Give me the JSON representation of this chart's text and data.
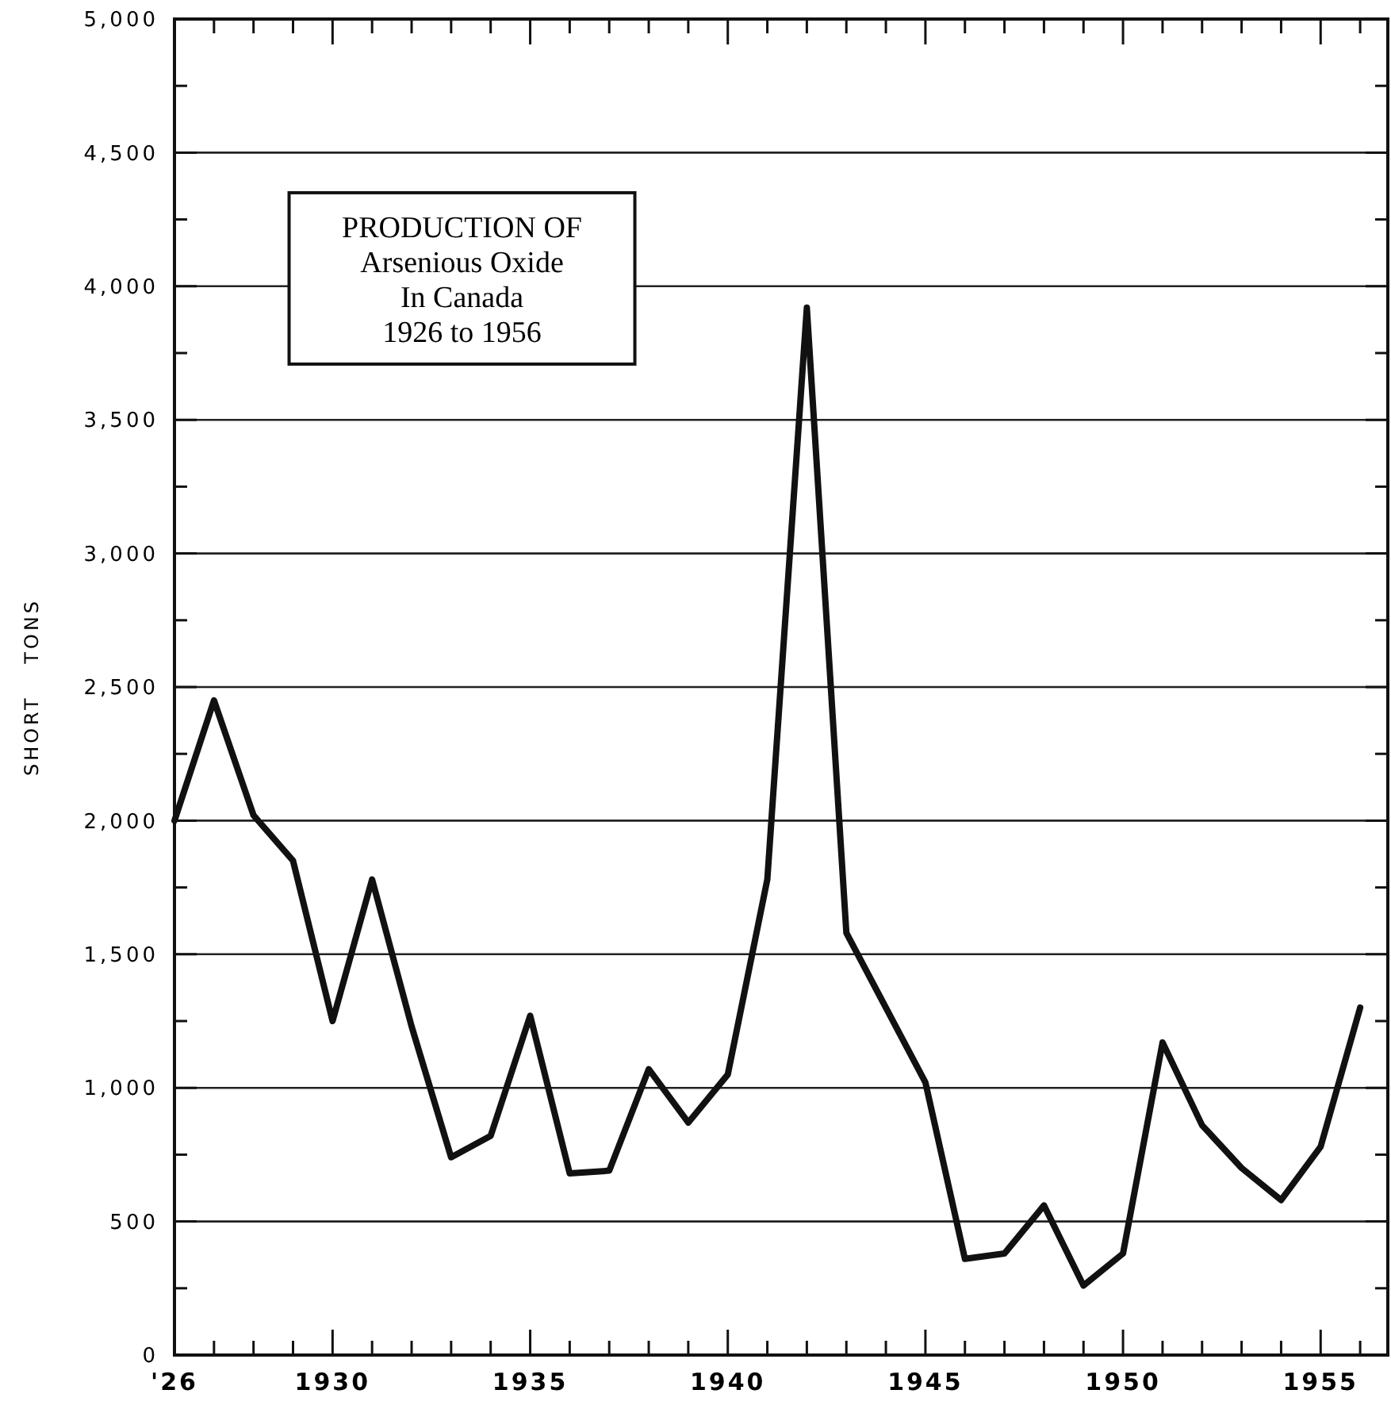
{
  "chart_data": {
    "type": "line",
    "title": "PRODUCTION OF\nArsenious Oxide\nIn Canada\n1926 to 1956",
    "ylabel": "SHORT TONS",
    "x": [
      1926,
      1927,
      1928,
      1929,
      1930,
      1931,
      1932,
      1933,
      1934,
      1935,
      1936,
      1937,
      1938,
      1939,
      1940,
      1941,
      1942,
      1943,
      1944,
      1945,
      1946,
      1947,
      1948,
      1949,
      1950,
      1951,
      1952,
      1953,
      1954,
      1955,
      1956
    ],
    "series": [
      {
        "color": "#111111",
        "values": [
          2000,
          2450,
          2020,
          1850,
          1250,
          1780,
          1230,
          740,
          820,
          1270,
          680,
          690,
          1070,
          870,
          1050,
          1780,
          3920,
          1580,
          1300,
          1020,
          360,
          380,
          560,
          260,
          380,
          1170,
          860,
          700,
          580,
          780,
          1300
        ]
      }
    ],
    "xlim": [
      1926,
      1956.7
    ],
    "xticks": [
      {
        "value": 1926,
        "label": "'26"
      },
      {
        "value": 1927,
        "label": null
      },
      {
        "value": 1928,
        "label": null
      },
      {
        "value": 1929,
        "label": null
      },
      1930,
      {
        "value": 1931,
        "label": null
      },
      {
        "value": 1932,
        "label": null
      },
      {
        "value": 1933,
        "label": null
      },
      {
        "value": 1934,
        "label": null
      },
      1935,
      {
        "value": 1936,
        "label": null
      },
      {
        "value": 1937,
        "label": null
      },
      {
        "value": 1938,
        "label": null
      },
      {
        "value": 1939,
        "label": null
      },
      1940,
      {
        "value": 1941,
        "label": null
      },
      {
        "value": 1942,
        "label": null
      },
      {
        "value": 1943,
        "label": null
      },
      {
        "value": 1944,
        "label": null
      },
      1945,
      {
        "value": 1946,
        "label": null
      },
      {
        "value": 1947,
        "label": null
      },
      {
        "value": 1948,
        "label": null
      },
      {
        "value": 1949,
        "label": null
      },
      1950,
      {
        "value": 1951,
        "label": null
      },
      {
        "value": 1952,
        "label": null
      },
      {
        "value": 1953,
        "label": null
      },
      {
        "value": 1954,
        "label": null
      },
      1955,
      {
        "value": 1956,
        "label": null
      }
    ],
    "ylim": [
      0,
      5000
    ],
    "yticks": [
      0,
      {
        "value": 250,
        "label": null
      },
      500,
      {
        "value": 750,
        "label": null
      },
      {
        "value": 1000,
        "label": "1,000"
      },
      {
        "value": 1250,
        "label": null
      },
      {
        "value": 1500,
        "label": "1,500"
      },
      {
        "value": 1750,
        "label": null
      },
      {
        "value": 2000,
        "label": "2,000"
      },
      {
        "value": 2250,
        "label": null
      },
      {
        "value": 2500,
        "label": "2,500"
      },
      {
        "value": 2750,
        "label": null
      },
      {
        "value": 3000,
        "label": "3,000"
      },
      {
        "value": 3250,
        "label": null
      },
      {
        "value": 3500,
        "label": "3,500"
      },
      {
        "value": 3750,
        "label": null
      },
      {
        "value": 4000,
        "label": "4,000"
      },
      {
        "value": 4250,
        "label": null
      },
      {
        "value": 4500,
        "label": "4,500"
      },
      {
        "value": 4750,
        "label": null
      },
      {
        "value": 5000,
        "label": "5,000"
      }
    ],
    "grid": "y",
    "marker": "none",
    "line_style": "solid"
  }
}
